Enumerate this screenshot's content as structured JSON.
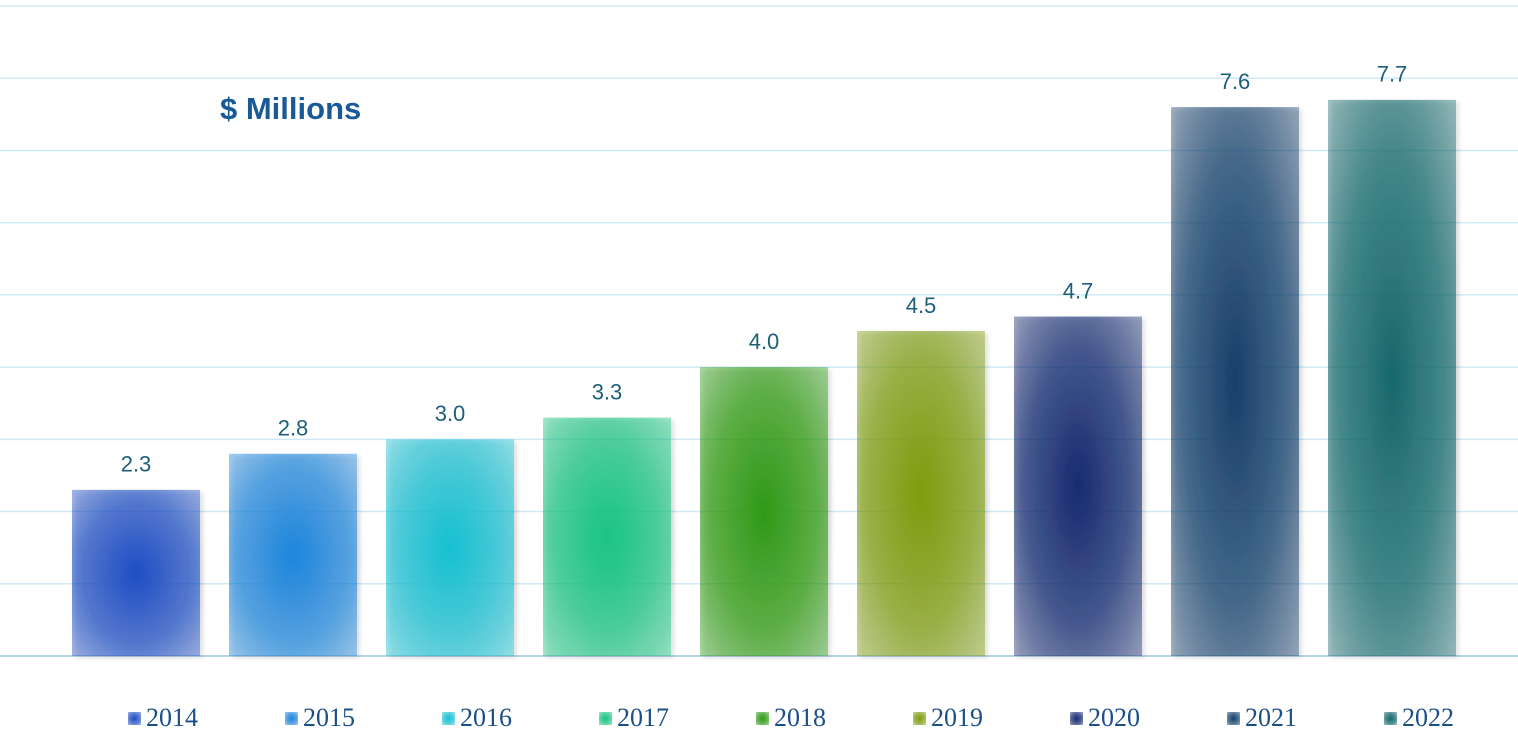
{
  "chart_data": {
    "type": "bar",
    "title": "$ Millions",
    "categories": [
      "2014",
      "2015",
      "2016",
      "2017",
      "2018",
      "2019",
      "2020",
      "2021",
      "2022"
    ],
    "values": [
      2.3,
      2.8,
      3.0,
      3.3,
      4.0,
      4.5,
      4.7,
      7.6,
      7.7
    ],
    "value_labels": [
      "2.3",
      "2.8",
      "3.0",
      "3.3",
      "4.0",
      "4.5",
      "4.7",
      "7.6",
      "7.7"
    ],
    "colors": [
      "#1f4fc4",
      "#1f86dc",
      "#19c0d2",
      "#1ac482",
      "#2f9a14",
      "#7e9c0e",
      "#142a70",
      "#143f6b",
      "#14686c"
    ],
    "ylim": [
      0,
      9
    ],
    "yticks": [
      0,
      1,
      2,
      3,
      4,
      5,
      6,
      7,
      8,
      9
    ],
    "grid": true,
    "legend": "bottom"
  }
}
